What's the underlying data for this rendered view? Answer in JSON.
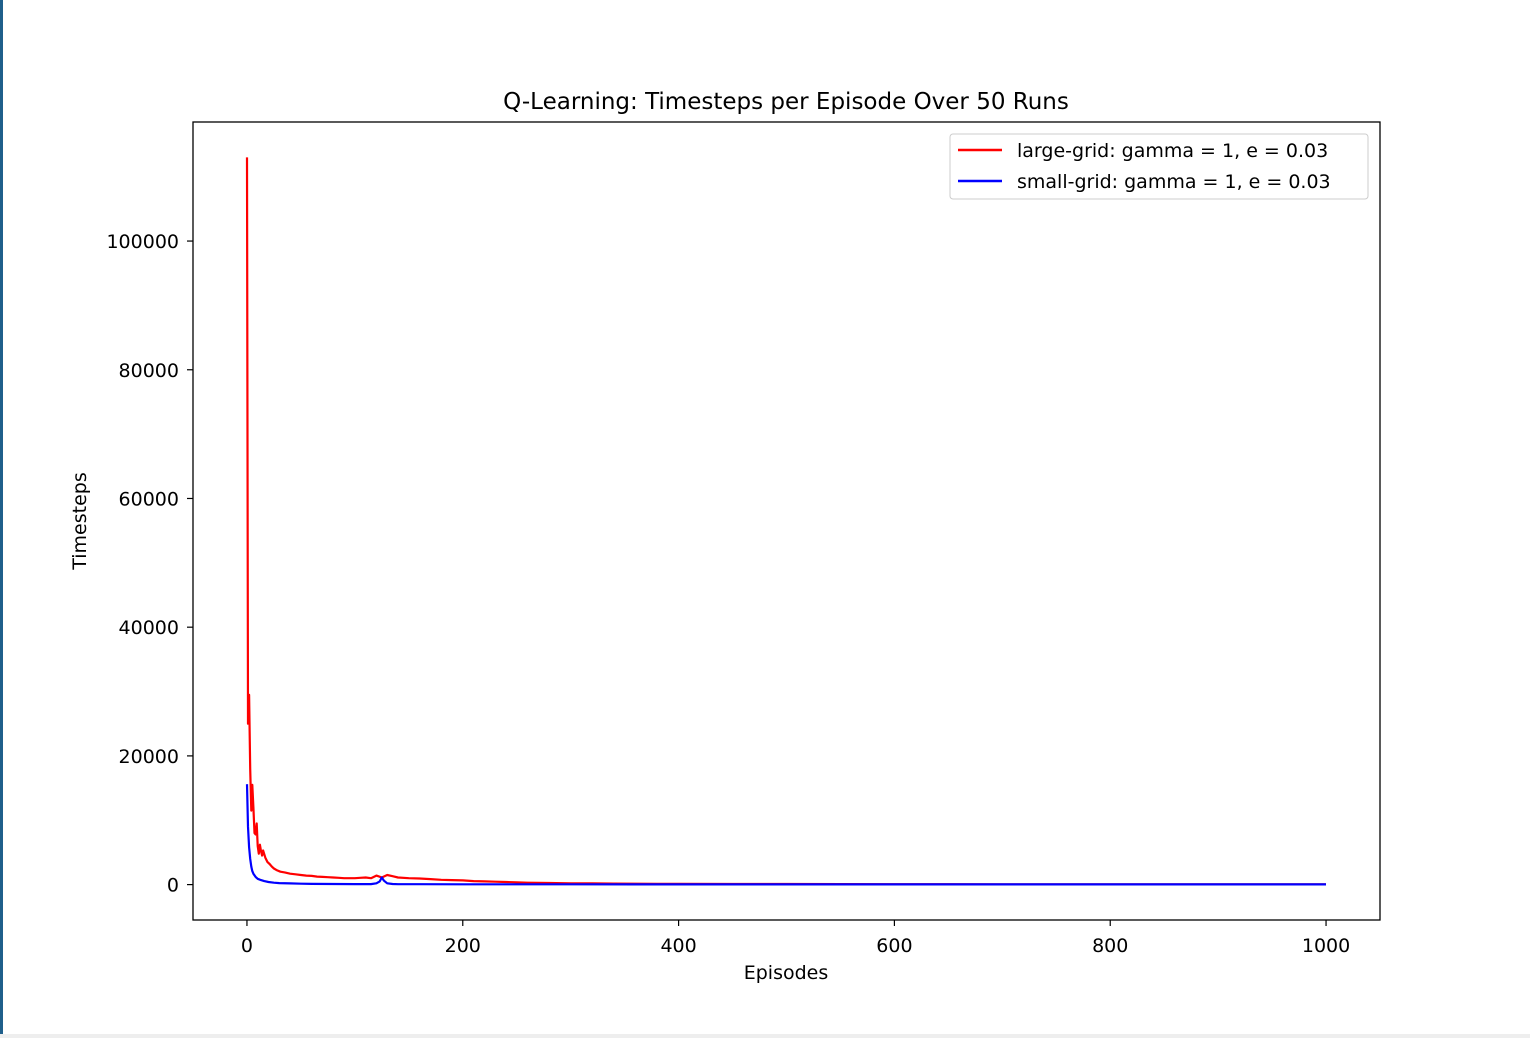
{
  "chart_data": {
    "type": "line",
    "title": "Q-Learning: Timesteps per Episode Over 50 Runs",
    "xlabel": "Episodes",
    "ylabel": "Timesteps",
    "xlim": [
      -50,
      1050
    ],
    "ylim": [
      -5500,
      118500
    ],
    "xticks": [
      0,
      200,
      400,
      600,
      800,
      1000
    ],
    "yticks": [
      0,
      20000,
      40000,
      60000,
      80000,
      100000
    ],
    "xtick_labels": [
      "0",
      "200",
      "400",
      "600",
      "800",
      "1000"
    ],
    "ytick_labels": [
      "0",
      "20000",
      "40000",
      "60000",
      "80000",
      "100000"
    ],
    "grid": false,
    "legend_position": "top-right",
    "series": [
      {
        "name": "large-grid: gamma = 1, e = 0.03",
        "color": "#ff0000",
        "x": [
          0,
          1,
          2,
          3,
          4,
          5,
          6,
          7,
          8,
          9,
          10,
          11,
          12,
          13,
          14,
          15,
          17,
          19,
          21,
          23,
          25,
          28,
          31,
          35,
          40,
          45,
          50,
          55,
          60,
          65,
          70,
          75,
          80,
          85,
          90,
          95,
          100,
          105,
          110,
          115,
          120,
          125,
          130,
          135,
          140,
          150,
          160,
          170,
          180,
          190,
          200,
          210,
          220,
          230,
          240,
          250,
          260,
          280,
          300,
          320,
          340,
          360,
          380,
          400,
          450,
          500,
          550,
          600,
          650,
          700,
          750,
          800,
          850,
          900,
          950,
          1000
        ],
        "y": [
          113000,
          25000,
          29500,
          18000,
          11500,
          15500,
          12000,
          8000,
          7800,
          9500,
          6000,
          4800,
          6200,
          5200,
          4500,
          5300,
          4200,
          3500,
          3200,
          2800,
          2500,
          2200,
          2000,
          1900,
          1700,
          1600,
          1500,
          1400,
          1350,
          1250,
          1200,
          1150,
          1100,
          1050,
          1000,
          1000,
          1000,
          1050,
          1100,
          1000,
          1400,
          1100,
          1500,
          1300,
          1100,
          1000,
          950,
          850,
          750,
          700,
          650,
          550,
          500,
          450,
          400,
          350,
          300,
          250,
          200,
          180,
          160,
          140,
          130,
          120,
          100,
          90,
          80,
          70,
          60,
          55,
          50,
          50,
          45,
          45,
          40,
          40
        ]
      },
      {
        "name": "small-grid: gamma = 1, e = 0.03",
        "color": "#0000ff",
        "x": [
          0,
          1,
          2,
          3,
          4,
          5,
          6,
          8,
          10,
          13,
          16,
          20,
          25,
          30,
          40,
          50,
          60,
          80,
          100,
          115,
          120,
          123,
          125,
          127,
          130,
          135,
          140,
          160,
          200,
          300,
          400,
          500,
          600,
          700,
          800,
          900,
          1000
        ],
        "y": [
          15600,
          9000,
          5800,
          4000,
          2800,
          2100,
          1700,
          1200,
          900,
          700,
          550,
          400,
          300,
          240,
          180,
          140,
          110,
          90,
          80,
          80,
          200,
          500,
          1100,
          600,
          200,
          90,
          70,
          60,
          50,
          40,
          35,
          30,
          30,
          30,
          30,
          30,
          30
        ]
      }
    ]
  }
}
